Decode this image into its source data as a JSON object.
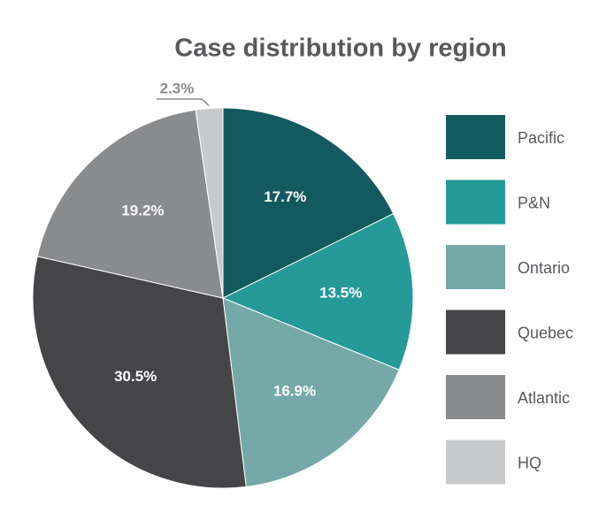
{
  "chart_data": {
    "type": "pie",
    "title": "Case distribution by region",
    "categories": [
      "Pacific",
      "P&N",
      "Ontario",
      "Quebec",
      "Atlantic",
      "HQ"
    ],
    "values": [
      17.7,
      13.5,
      16.9,
      30.5,
      19.2,
      2.3
    ],
    "value_labels": [
      "17.7%",
      "13.5%",
      "16.9%",
      "30.5%",
      "19.2%",
      "2.3%"
    ],
    "colors": [
      "#135a60",
      "#259a98",
      "#75a9a8",
      "#454547",
      "#8a8b8d",
      "#c8c9cb"
    ],
    "legend": "right"
  }
}
